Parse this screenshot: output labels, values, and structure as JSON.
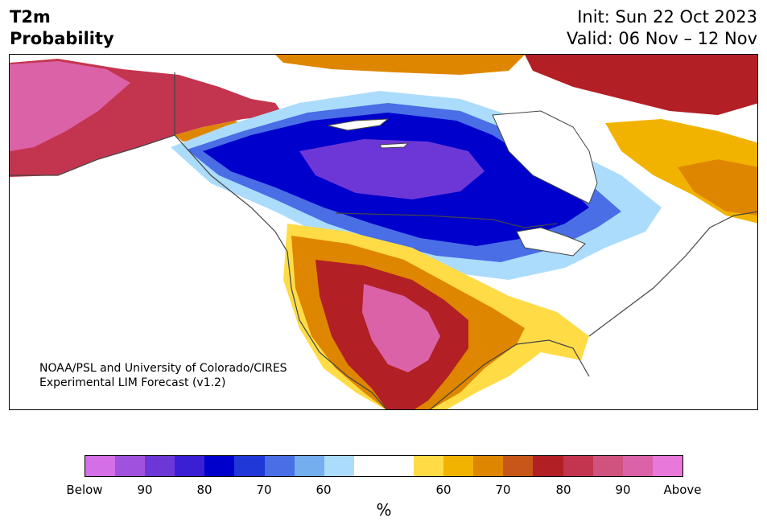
{
  "header": {
    "title_line1": "T2m",
    "title_line2": "Probability",
    "init": "Init: Sun 22 Oct 2023",
    "valid": "Valid: 06 Nov – 12 Nov"
  },
  "credit": {
    "line1": "NOAA/PSL and University of Colorado/CIRES",
    "line2": "Experimental LIM Forecast (v1.2)"
  },
  "colorbar": {
    "colors": [
      "#d46fe8",
      "#a052de",
      "#6d37d8",
      "#3a1fd4",
      "#0000cc",
      "#2038d8",
      "#4a6ee6",
      "#74aeef",
      "#acdcfb",
      "#ffffff",
      "#ffffff",
      "#ffdc46",
      "#f1b300",
      "#df8600",
      "#c85618",
      "#b21f24",
      "#c3354f",
      "#d0527f",
      "#dc62a8",
      "#e878da"
    ],
    "labels": [
      "Below",
      "90",
      "80",
      "70",
      "60",
      "60",
      "70",
      "80",
      "90",
      "Above"
    ],
    "unit": "%"
  },
  "map_colors": {
    "below": [
      "#d46fe8",
      "#a052de",
      "#6d37d8",
      "#3a1fd4",
      "#0000cc",
      "#2038d8",
      "#4a6ee6",
      "#74aeef",
      "#acdcfb"
    ],
    "above": [
      "#ffdc46",
      "#f1b300",
      "#df8600",
      "#c85618",
      "#b21f24",
      "#c3354f",
      "#d0527f",
      "#dc62a8"
    ],
    "land_border": "#444444",
    "background": "#ffffff"
  }
}
